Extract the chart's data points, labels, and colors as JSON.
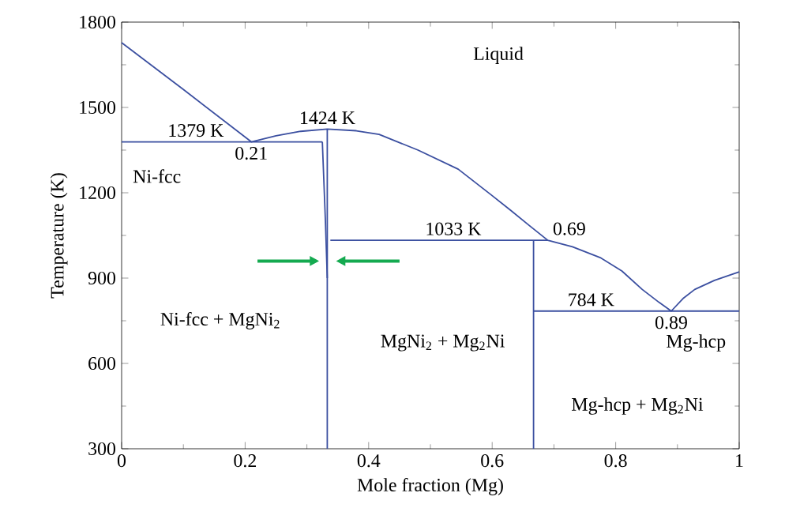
{
  "chart_data": {
    "type": "line",
    "xlabel": "Mole fraction (Mg)",
    "ylabel": "Temperature (K)",
    "xlim": [
      0,
      1
    ],
    "ylim": [
      300,
      1800
    ],
    "xticks": [
      0,
      0.2,
      0.4,
      0.6,
      0.8,
      1
    ],
    "yticks": [
      300,
      600,
      900,
      1200,
      1500,
      1800
    ],
    "grid": false,
    "marker": "none",
    "line_style": "solid",
    "series": [
      {
        "color": "#3b4fa0",
        "x": [
          0,
          0.1,
          0.21,
          0.25,
          0.29,
          0.333,
          0.38,
          0.417,
          0.48,
          0.545,
          0.6,
          0.63,
          0.66,
          0.69,
          0.73,
          0.775,
          0.81,
          0.843,
          0.87,
          0.89,
          0.91,
          0.928,
          0.96,
          1
        ],
        "values": [
          1728,
          1563,
          1379,
          1400,
          1416,
          1424,
          1418,
          1405,
          1350,
          1283,
          1190,
          1138,
          1085,
          1033,
          1010,
          972,
          925,
          860,
          815,
          784,
          830,
          860,
          892,
          922
        ]
      },
      {
        "color": "#3b4fa0",
        "x": [
          0,
          0.325
        ],
        "values": [
          1379,
          1379
        ]
      },
      {
        "color": "#3b4fa0",
        "x": [
          0.325,
          0.33,
          0.333
        ],
        "values": [
          1379,
          1100,
          900
        ]
      },
      {
        "color": "#3b4fa0",
        "x": [
          0.333,
          0.333
        ],
        "values": [
          1424,
          300
        ]
      },
      {
        "color": "#3b4fa0",
        "x": [
          0.338,
          0.69
        ],
        "values": [
          1033,
          1033
        ]
      },
      {
        "color": "#3b4fa0",
        "x": [
          0.667,
          0.667
        ],
        "values": [
          1033,
          300
        ]
      },
      {
        "color": "#3b4fa0",
        "x": [
          0.667,
          1
        ],
        "values": [
          784,
          784
        ]
      }
    ],
    "annotations": [
      "Liquid",
      {
        "text": "1379 K",
        "x": 0.12,
        "y": 1379
      },
      {
        "text": "1424 K",
        "x": 0.333,
        "y": 1424
      },
      {
        "text": "0.21",
        "x": 0.21,
        "y": 1379
      },
      "Ni-fcc",
      {
        "text": "1033 K",
        "x": 0.537,
        "y": 1033
      },
      {
        "text": "0.69",
        "x": 0.69,
        "y": 1033
      },
      {
        "text": "784 K",
        "x": 0.76,
        "y": 784
      },
      {
        "text": "0.89",
        "x": 0.89,
        "y": 784
      },
      "Mg-hcp",
      "Ni-fcc + MgNi$_{2}$",
      "MgNi$_{2}$ + Mg$_{2}$Ni",
      "Mg-hcp + Mg$_{2}$Ni"
    ]
  }
}
